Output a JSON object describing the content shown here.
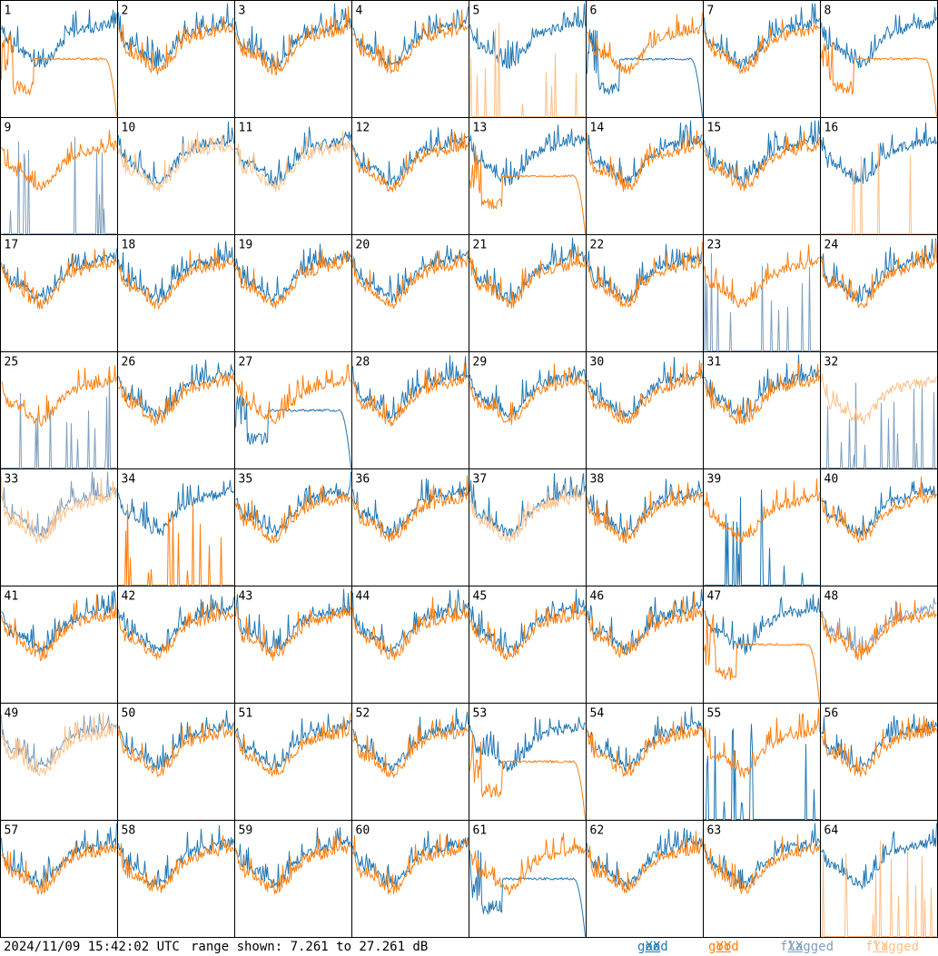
{
  "footer": {
    "timestamp": "2024/11/09 15:42:02 UTC",
    "range": "range shown: 7.261 to 27.261 dB",
    "legend": [
      {
        "label": "good",
        "pol": "XX",
        "color": "#1f77b4"
      },
      {
        "label": "good",
        "pol": "YY",
        "color": "#ff7f0e"
      },
      {
        "label": "flagged",
        "pol": "XX",
        "color": "#7f9fbf"
      },
      {
        "label": "flagged",
        "pol": "YY",
        "color": "#ffbf87"
      }
    ]
  },
  "chart_data": {
    "type": "line",
    "grid": {
      "rows": 8,
      "cols": 8
    },
    "range_db": [
      7.261,
      27.261
    ],
    "colors": {
      "good_xx": "#1f77b4",
      "good_yy": "#ff7f0e",
      "flagged_xx": "#7f9fbf",
      "flagged_yy": "#ffbf87"
    },
    "panels": [
      {
        "n": "1",
        "xx": "normal",
        "yy": "flat",
        "flag": "none"
      },
      {
        "n": "2",
        "xx": "normal",
        "yy": "normal",
        "flag": "none"
      },
      {
        "n": "3",
        "xx": "normal",
        "yy": "normal",
        "flag": "none"
      },
      {
        "n": "4",
        "xx": "normal",
        "yy": "normal",
        "flag": "none"
      },
      {
        "n": "5",
        "xx": "normal",
        "yy": "spikes",
        "flag": "yy"
      },
      {
        "n": "6",
        "xx": "flat",
        "yy": "normal",
        "flag": "none"
      },
      {
        "n": "7",
        "xx": "normal",
        "yy": "normal",
        "flag": "none"
      },
      {
        "n": "8",
        "xx": "normal",
        "yy": "flat",
        "flag": "none"
      },
      {
        "n": "9",
        "xx": "spikes",
        "yy": "normal",
        "flag": "xx"
      },
      {
        "n": "10",
        "xx": "normal",
        "yy": "normal",
        "flag": "yy"
      },
      {
        "n": "11",
        "xx": "normal",
        "yy": "normal",
        "flag": "yy"
      },
      {
        "n": "12",
        "xx": "normal",
        "yy": "normal",
        "flag": "none"
      },
      {
        "n": "13",
        "xx": "normal",
        "yy": "flat",
        "flag": "none"
      },
      {
        "n": "14",
        "xx": "normal",
        "yy": "normal",
        "flag": "none"
      },
      {
        "n": "15",
        "xx": "normal",
        "yy": "normal",
        "flag": "none"
      },
      {
        "n": "16",
        "xx": "normal",
        "yy": "spikes",
        "flag": "yy"
      },
      {
        "n": "17",
        "xx": "normal",
        "yy": "normal",
        "flag": "none"
      },
      {
        "n": "18",
        "xx": "normal",
        "yy": "normal",
        "flag": "none"
      },
      {
        "n": "19",
        "xx": "normal",
        "yy": "normal",
        "flag": "none"
      },
      {
        "n": "20",
        "xx": "normal",
        "yy": "normal",
        "flag": "none"
      },
      {
        "n": "21",
        "xx": "normal",
        "yy": "normal",
        "flag": "none"
      },
      {
        "n": "22",
        "xx": "normal",
        "yy": "normal",
        "flag": "none"
      },
      {
        "n": "23",
        "xx": "spikes",
        "yy": "normal",
        "flag": "xx"
      },
      {
        "n": "24",
        "xx": "normal",
        "yy": "normal",
        "flag": "none"
      },
      {
        "n": "25",
        "xx": "spikes",
        "yy": "normal",
        "flag": "xx"
      },
      {
        "n": "26",
        "xx": "normal",
        "yy": "normal",
        "flag": "none"
      },
      {
        "n": "27",
        "xx": "flat",
        "yy": "normal",
        "flag": "none"
      },
      {
        "n": "28",
        "xx": "normal",
        "yy": "normal",
        "flag": "none"
      },
      {
        "n": "29",
        "xx": "normal",
        "yy": "normal",
        "flag": "none"
      },
      {
        "n": "30",
        "xx": "normal",
        "yy": "normal",
        "flag": "none"
      },
      {
        "n": "31",
        "xx": "normal",
        "yy": "normal",
        "flag": "none"
      },
      {
        "n": "32",
        "xx": "spikes",
        "yy": "normal",
        "flag": "both"
      },
      {
        "n": "33",
        "xx": "normal",
        "yy": "normal",
        "flag": "both"
      },
      {
        "n": "34",
        "xx": "normal",
        "yy": "spikes",
        "flag": "none"
      },
      {
        "n": "35",
        "xx": "normal",
        "yy": "normal",
        "flag": "none"
      },
      {
        "n": "36",
        "xx": "normal",
        "yy": "normal",
        "flag": "none"
      },
      {
        "n": "37",
        "xx": "normal",
        "yy": "normal",
        "flag": "yy"
      },
      {
        "n": "38",
        "xx": "normal",
        "yy": "normal",
        "flag": "none"
      },
      {
        "n": "39",
        "xx": "spikes",
        "yy": "normal",
        "flag": "none"
      },
      {
        "n": "40",
        "xx": "normal",
        "yy": "normal",
        "flag": "none"
      },
      {
        "n": "41",
        "xx": "normal",
        "yy": "normal",
        "flag": "none"
      },
      {
        "n": "42",
        "xx": "normal",
        "yy": "normal",
        "flag": "none"
      },
      {
        "n": "43",
        "xx": "normal",
        "yy": "normal",
        "flag": "none"
      },
      {
        "n": "44",
        "xx": "normal",
        "yy": "normal",
        "flag": "none"
      },
      {
        "n": "45",
        "xx": "normal",
        "yy": "normal",
        "flag": "none"
      },
      {
        "n": "46",
        "xx": "normal",
        "yy": "normal",
        "flag": "none"
      },
      {
        "n": "47",
        "xx": "normal",
        "yy": "flat",
        "flag": "none"
      },
      {
        "n": "48",
        "xx": "normal",
        "yy": "normal",
        "flag": "xx"
      },
      {
        "n": "49",
        "xx": "normal",
        "yy": "normal",
        "flag": "both"
      },
      {
        "n": "50",
        "xx": "normal",
        "yy": "normal",
        "flag": "none"
      },
      {
        "n": "51",
        "xx": "normal",
        "yy": "normal",
        "flag": "none"
      },
      {
        "n": "52",
        "xx": "normal",
        "yy": "normal",
        "flag": "none"
      },
      {
        "n": "53",
        "xx": "normal",
        "yy": "flat",
        "flag": "none"
      },
      {
        "n": "54",
        "xx": "normal",
        "yy": "normal",
        "flag": "none"
      },
      {
        "n": "55",
        "xx": "spikes",
        "yy": "normal",
        "flag": "none"
      },
      {
        "n": "56",
        "xx": "normal",
        "yy": "normal",
        "flag": "none"
      },
      {
        "n": "57",
        "xx": "normal",
        "yy": "normal",
        "flag": "none"
      },
      {
        "n": "58",
        "xx": "normal",
        "yy": "normal",
        "flag": "none"
      },
      {
        "n": "59",
        "xx": "normal",
        "yy": "normal",
        "flag": "none"
      },
      {
        "n": "60",
        "xx": "normal",
        "yy": "normal",
        "flag": "none"
      },
      {
        "n": "61",
        "xx": "flat",
        "yy": "normal",
        "flag": "none"
      },
      {
        "n": "62",
        "xx": "normal",
        "yy": "normal",
        "flag": "none"
      },
      {
        "n": "63",
        "xx": "normal",
        "yy": "normal",
        "flag": "none"
      },
      {
        "n": "64",
        "xx": "normal",
        "yy": "spikes",
        "flag": "yy"
      }
    ]
  }
}
